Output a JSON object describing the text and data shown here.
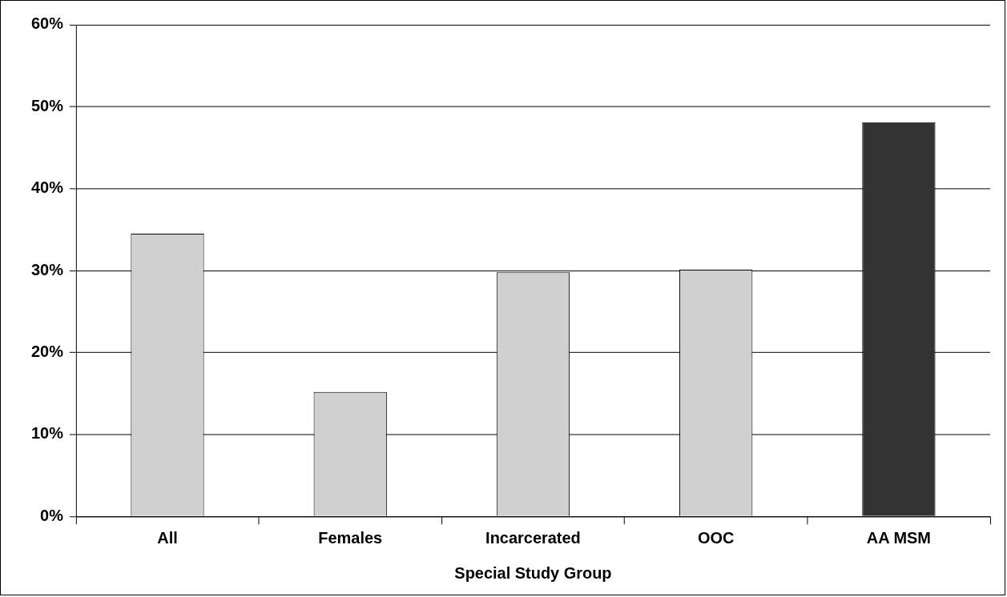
{
  "chart_data": {
    "type": "bar",
    "xlabel": "Special Study Group",
    "categories": [
      "All",
      "Females",
      "Incarcerated",
      "OOC",
      "AA MSM"
    ],
    "values": [
      34.5,
      15.2,
      29.8,
      30.1,
      48.1
    ],
    "colors": [
      "#d0d0d0",
      "#d0d0d0",
      "#d0d0d0",
      "#d0d0d0",
      "#333333"
    ],
    "ylim": [
      0,
      60
    ],
    "yticks": [
      {
        "value": 0,
        "label": "0%"
      },
      {
        "value": 10,
        "label": "10%"
      },
      {
        "value": 20,
        "label": "20%"
      },
      {
        "value": 30,
        "label": "30%"
      },
      {
        "value": 40,
        "label": "40%"
      },
      {
        "value": 50,
        "label": "50%"
      },
      {
        "value": 60,
        "label": "60%"
      }
    ],
    "grid": "y",
    "legend": false
  }
}
